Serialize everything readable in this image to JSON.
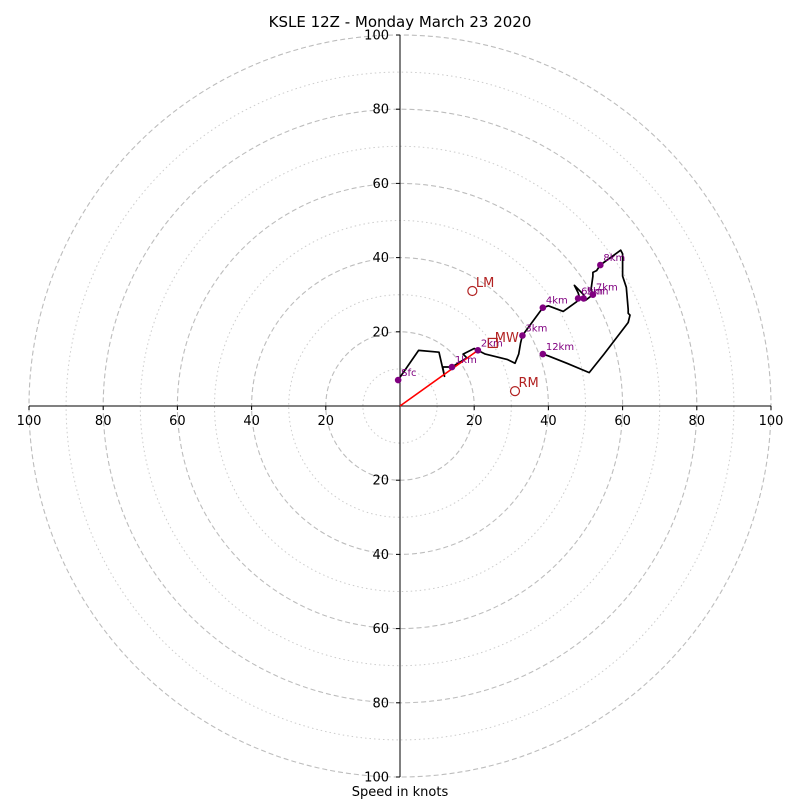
{
  "chart_data": {
    "type": "hodograph",
    "title": "KSLE 12Z - Monday March 23 2020",
    "xlabel": "Speed in knots",
    "range": [
      -100,
      100
    ],
    "rings": {
      "major": [
        20,
        40,
        60,
        80,
        100
      ],
      "minor": [
        10,
        30,
        50,
        70,
        90
      ]
    },
    "ticks": {
      "x": [
        "100",
        "80",
        "60",
        "40",
        "20",
        "20",
        "40",
        "60",
        "80",
        "100"
      ],
      "x_values": [
        -100,
        -80,
        -60,
        -40,
        -20,
        20,
        40,
        60,
        80,
        100
      ],
      "y": [
        "100",
        "80",
        "60",
        "40",
        "20",
        "20",
        "40",
        "60",
        "80",
        "100"
      ],
      "y_values": [
        100,
        80,
        60,
        40,
        20,
        -20,
        -40,
        -60,
        -80,
        -100
      ]
    },
    "profile": [
      [
        -0.5,
        7
      ],
      [
        5,
        15
      ],
      [
        10.5,
        14.5
      ],
      [
        12,
        8
      ],
      [
        11.5,
        10.5
      ],
      [
        14,
        10.5
      ],
      [
        18,
        13
      ],
      [
        17,
        14
      ],
      [
        20,
        15.5
      ],
      [
        21,
        15
      ],
      [
        23,
        14
      ],
      [
        29,
        12.5
      ],
      [
        31,
        11.5
      ],
      [
        32,
        14
      ],
      [
        32.5,
        17
      ],
      [
        33,
        19
      ],
      [
        38.5,
        26.5
      ],
      [
        40,
        27
      ],
      [
        44,
        25.5
      ],
      [
        47.5,
        28
      ],
      [
        48.5,
        29
      ],
      [
        48,
        30.5
      ],
      [
        47,
        32.5
      ],
      [
        49.5,
        30
      ],
      [
        50,
        28.5
      ],
      [
        52,
        30
      ],
      [
        51.5,
        31.5
      ],
      [
        52,
        35
      ],
      [
        52,
        36
      ],
      [
        53,
        36.5
      ],
      [
        54,
        38
      ],
      [
        59.5,
        42
      ],
      [
        60,
        41
      ],
      [
        60,
        35
      ],
      [
        61,
        32
      ],
      [
        61.5,
        26
      ],
      [
        61.5,
        25
      ],
      [
        62,
        24.5
      ],
      [
        61.5,
        22.5
      ],
      [
        55,
        14
      ],
      [
        51,
        9
      ],
      [
        45,
        11.5
      ],
      [
        40,
        13.5
      ],
      [
        38.5,
        14
      ]
    ],
    "height_markers": [
      {
        "label": "Sfc",
        "u": -0.5,
        "v": 7
      },
      {
        "label": "1km",
        "u": 14,
        "v": 10.5
      },
      {
        "label": "2km",
        "u": 21,
        "v": 15
      },
      {
        "label": "3km",
        "u": 33,
        "v": 19
      },
      {
        "label": "4km",
        "u": 38.5,
        "v": 26.5
      },
      {
        "label": "6km",
        "u": 48,
        "v": 29
      },
      {
        "label": "5km",
        "u": 49.5,
        "v": 29
      },
      {
        "label": "7km",
        "u": 52,
        "v": 30
      },
      {
        "label": "8km",
        "u": 54,
        "v": 38
      },
      {
        "label": "12km",
        "u": 38.5,
        "v": 14
      }
    ],
    "storm_motions": [
      {
        "label": "LM",
        "u": 19.5,
        "v": 31
      },
      {
        "label": "RM",
        "u": 31,
        "v": 4
      }
    ],
    "mean_wind": {
      "label": "MW",
      "u": 25,
      "v": 17
    },
    "shear_vector": {
      "from": [
        0,
        0
      ],
      "to": [
        21,
        15
      ]
    },
    "colors": {
      "profile": "#000000",
      "markers": "#800080",
      "motions": "#b22222",
      "shear": "#ff0000",
      "grid": "#bdbdbd"
    }
  }
}
